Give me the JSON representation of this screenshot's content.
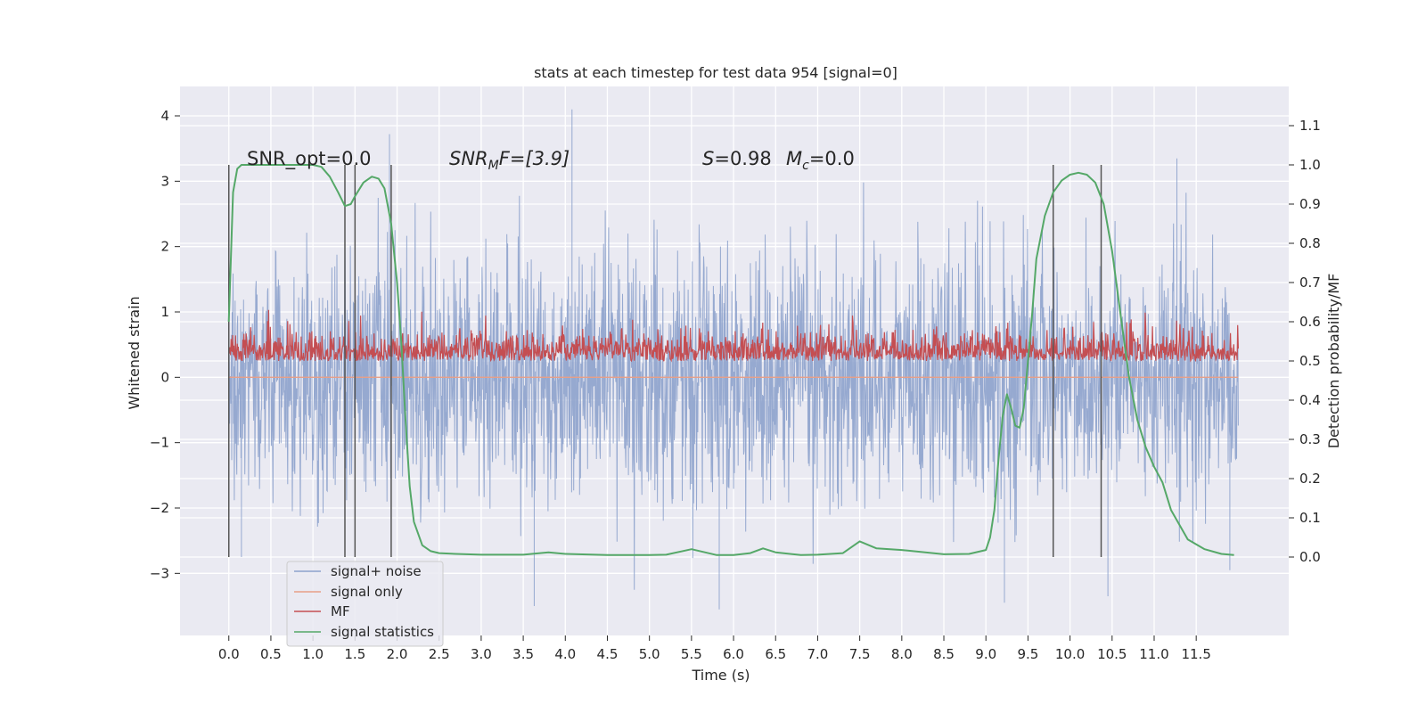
{
  "chart_data": {
    "type": "line",
    "title": "stats at each timestep for test data 954 [signal=0]",
    "xlabel": "Time (s)",
    "ylabel_left": "Whitened strain",
    "ylabel_right": "Detection probability/MF",
    "xlim": [
      -0.58,
      12.6
    ],
    "ylim_left": [
      -3.95,
      4.45
    ],
    "ylim_right": [
      -0.2,
      1.2
    ],
    "x_ticks": [
      0.0,
      0.5,
      1.0,
      1.5,
      2.0,
      2.5,
      3.0,
      3.5,
      4.0,
      4.5,
      5.0,
      5.5,
      6.0,
      6.5,
      7.0,
      7.5,
      8.0,
      8.5,
      9.0,
      9.5,
      10.0,
      10.5,
      11.0,
      11.5
    ],
    "y_ticks_left": [
      -3,
      -2,
      -1,
      0,
      1,
      2,
      3,
      4
    ],
    "y_ticks_right": [
      0.0,
      0.1,
      0.2,
      0.3,
      0.4,
      0.5,
      0.6,
      0.7,
      0.8,
      0.9,
      1.0,
      1.1
    ],
    "grid": true,
    "legend_position": "lower-left",
    "annotations": {
      "snr_opt": "SNR_opt=0.0",
      "snr_mf_prefix": "SNR",
      "snr_mf_sub": "M",
      "snr_mf_suffix": "F=[3.9]",
      "s_symbol": "S",
      "s_value": "=0.98",
      "mc_symbol": "M",
      "mc_sub": "c",
      "mc_value": "=0.0"
    },
    "vertical_markers_s": [
      0.0,
      1.38,
      1.5,
      1.93,
      9.8,
      10.37
    ],
    "series": [
      {
        "name": "signal+ noise",
        "color": "#8da2cc",
        "axis": "left",
        "description_values": {
          "t_start": 0.0,
          "t_end": 12.0,
          "mean": 0.0,
          "std": 1.0,
          "max": 4.1,
          "min": -3.55
        },
        "peaks": [
          {
            "x": 1.91,
            "y": 3.72
          },
          {
            "x": 4.08,
            "y": 4.1
          },
          {
            "x": 11.27,
            "y": 3.35
          },
          {
            "x": 3.63,
            "y": -3.5
          },
          {
            "x": 5.83,
            "y": -3.55
          },
          {
            "x": 9.22,
            "y": -3.45
          },
          {
            "x": 10.45,
            "y": -3.35
          },
          {
            "x": 0.15,
            "y": -2.75
          },
          {
            "x": 11.9,
            "y": -2.95
          }
        ]
      },
      {
        "name": "signal only",
        "color": "#e89f87",
        "axis": "left",
        "values_constant": 0.0
      },
      {
        "name": "MF",
        "color": "#c44e52",
        "axis": "right",
        "description_values": {
          "t_start": 0.0,
          "t_end": 12.0,
          "baseline": 0.5,
          "min": 0.49,
          "max": 0.63
        }
      },
      {
        "name": "signal statistics",
        "color": "#55a868",
        "axis": "right",
        "x": [
          0.0,
          0.05,
          0.1,
          0.15,
          0.25,
          0.4,
          0.7,
          1.0,
          1.1,
          1.2,
          1.3,
          1.38,
          1.45,
          1.5,
          1.6,
          1.7,
          1.78,
          1.85,
          1.93,
          2.0,
          2.05,
          2.1,
          2.15,
          2.2,
          2.3,
          2.4,
          2.5,
          2.7,
          3.0,
          3.5,
          3.8,
          4.0,
          4.5,
          5.0,
          5.2,
          5.5,
          5.8,
          6.0,
          6.2,
          6.35,
          6.5,
          6.8,
          7.0,
          7.3,
          7.5,
          7.7,
          8.0,
          8.5,
          8.8,
          9.0,
          9.05,
          9.1,
          9.15,
          9.2,
          9.25,
          9.3,
          9.35,
          9.4,
          9.45,
          9.5,
          9.55,
          9.6,
          9.7,
          9.8,
          9.9,
          10.0,
          10.1,
          10.2,
          10.3,
          10.4,
          10.5,
          10.6,
          10.7,
          10.8,
          10.9,
          11.0,
          11.1,
          11.2,
          11.4,
          11.6,
          11.8,
          11.95
        ],
        "values": [
          0.6,
          0.93,
          0.99,
          1.0,
          1.0,
          1.0,
          1.0,
          1.0,
          0.995,
          0.97,
          0.93,
          0.895,
          0.9,
          0.92,
          0.955,
          0.97,
          0.965,
          0.94,
          0.85,
          0.7,
          0.55,
          0.35,
          0.18,
          0.09,
          0.03,
          0.015,
          0.01,
          0.008,
          0.006,
          0.006,
          0.012,
          0.008,
          0.005,
          0.005,
          0.006,
          0.02,
          0.005,
          0.005,
          0.01,
          0.022,
          0.012,
          0.005,
          0.006,
          0.01,
          0.04,
          0.022,
          0.018,
          0.007,
          0.008,
          0.018,
          0.05,
          0.12,
          0.25,
          0.36,
          0.415,
          0.38,
          0.335,
          0.33,
          0.38,
          0.5,
          0.62,
          0.76,
          0.87,
          0.93,
          0.96,
          0.975,
          0.98,
          0.975,
          0.955,
          0.9,
          0.78,
          0.62,
          0.46,
          0.35,
          0.28,
          0.23,
          0.19,
          0.12,
          0.045,
          0.02,
          0.008,
          0.005
        ]
      }
    ]
  }
}
